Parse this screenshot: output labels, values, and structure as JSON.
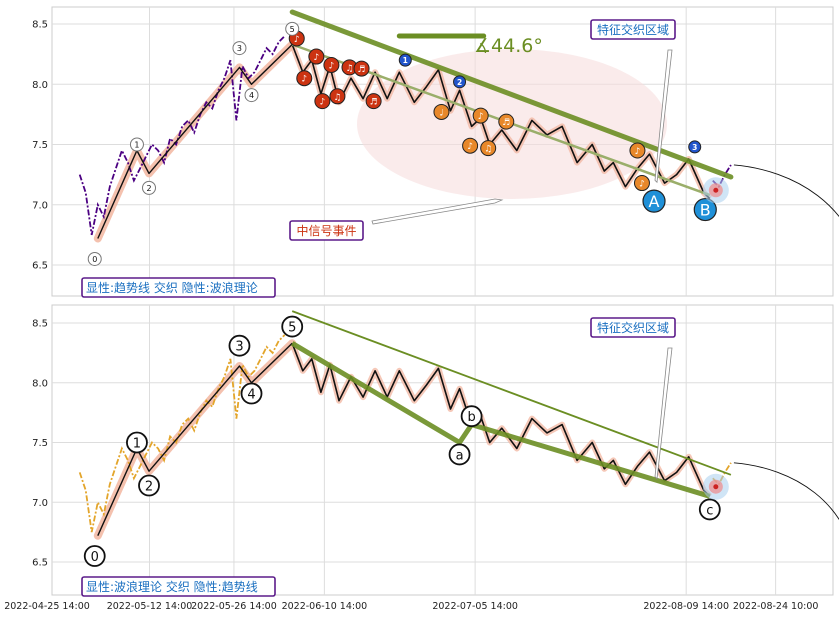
{
  "chart_data": [
    {
      "type": "line",
      "panel": "top",
      "title": "",
      "xlabel": "",
      "ylabel": "",
      "ylim": [
        6.27,
        8.65
      ],
      "yticks": [
        6.5,
        7.0,
        7.5,
        8.0,
        8.5
      ],
      "ytick_labels": [
        "6.5",
        "7.0",
        "7.5",
        "8.0",
        "8.5"
      ],
      "grid": true,
      "legend_box": "显性:趋势线 交织 隐性:波浪理论",
      "angle_label": "∡44.6°",
      "signal_label": "中信号事件",
      "zone_label": "特征交织区域",
      "big_labels": [
        {
          "text": "A",
          "date": "2022-08-04 06:00",
          "y": 7.03
        },
        {
          "text": "B",
          "date": "2022-08-12 18:00",
          "y": 6.96
        }
      ],
      "series": [
        {
          "role": "price",
          "color": "#4b0082",
          "x": [
            "2022-05-01 00:00",
            "2022-05-02 00:00",
            "2022-05-03 00:00",
            "2022-05-04 00:00",
            "2022-05-05 00:00",
            "2022-05-06 00:00",
            "2022-05-07 00:00",
            "2022-05-08 00:00",
            "2022-05-09 00:00",
            "2022-05-10 00:00",
            "2022-05-11 00:00",
            "2022-05-12 00:00",
            "2022-05-13 00:00",
            "2022-05-14 00:00",
            "2022-05-15 00:00",
            "2022-05-16 00:00",
            "2022-05-17 00:00",
            "2022-05-18 00:00",
            "2022-05-19 00:00",
            "2022-05-20 00:00",
            "2022-05-21 00:00",
            "2022-05-22 00:00",
            "2022-05-23 00:00",
            "2022-05-24 00:00",
            "2022-05-25 00:00",
            "2022-05-26 00:00",
            "2022-05-27 00:00",
            "2022-05-28 00:00",
            "2022-05-29 00:00",
            "2022-05-30 00:00",
            "2022-05-31 00:00",
            "2022-06-01 00:00",
            "2022-06-02 00:00",
            "2022-06-03 00:00",
            "2022-06-04 00:00"
          ],
          "y": [
            7.25,
            7.1,
            6.75,
            7.0,
            6.9,
            7.15,
            7.3,
            7.45,
            7.35,
            7.2,
            7.3,
            7.4,
            7.5,
            7.45,
            7.35,
            7.55,
            7.5,
            7.65,
            7.7,
            7.6,
            7.75,
            7.85,
            7.8,
            7.95,
            8.05,
            8.2,
            7.7,
            8.15,
            8.05,
            8.1,
            8.2,
            8.3,
            8.25,
            8.35,
            8.4
          ]
        },
        {
          "role": "price-after",
          "color": "#4b0082",
          "x": [
            "2022-08-14 00:00",
            "2022-08-15 00:00",
            "2022-08-16 00:00",
            "2022-08-17 00:00"
          ],
          "y": [
            7.2,
            7.15,
            7.25,
            7.33
          ]
        },
        {
          "role": "wave",
          "color": "#000000",
          "x": [
            "2022-06-05 06:00",
            "2022-06-07 00:00",
            "2022-06-08 12:00",
            "2022-06-10 00:00",
            "2022-06-11 12:00",
            "2022-06-13 00:00",
            "2022-06-15 00:00",
            "2022-06-17 00:00",
            "2022-06-19 00:00",
            "2022-06-21 00:00",
            "2022-06-23 00:00",
            "2022-06-25 12:00",
            "2022-06-27 12:00",
            "2022-06-29 12:00",
            "2022-07-01 12:00",
            "2022-07-03 00:00",
            "2022-07-05 00:00",
            "2022-07-06 12:00",
            "2022-07-08 00:00",
            "2022-07-10 00:00",
            "2022-07-12 12:00",
            "2022-07-15 00:00",
            "2022-07-17 12:00",
            "2022-07-20 00:00",
            "2022-07-22 12:00",
            "2022-07-25 00:00",
            "2022-07-27 00:00",
            "2022-07-28 12:00",
            "2022-07-30 12:00",
            "2022-08-01 12:00",
            "2022-08-03 12:00",
            "2022-08-06 00:00",
            "2022-08-08 00:00",
            "2022-08-10 00:00",
            "2022-08-12 12:00",
            "2022-08-13 12:00"
          ],
          "y": [
            8.33,
            8.1,
            8.2,
            7.92,
            8.15,
            7.85,
            8.05,
            7.88,
            8.1,
            7.88,
            8.1,
            7.85,
            7.98,
            8.12,
            7.78,
            7.95,
            7.65,
            7.72,
            7.5,
            7.62,
            7.45,
            7.7,
            7.58,
            7.65,
            7.35,
            7.5,
            7.28,
            7.35,
            7.15,
            7.3,
            7.42,
            7.18,
            7.25,
            7.38,
            7.1,
            7.05
          ]
        },
        {
          "role": "wave-impulse",
          "color": "#000000",
          "x": [
            "2022-05-04 00:00",
            "2022-05-10 12:00",
            "2022-05-12 12:00",
            "2022-05-27 12:00",
            "2022-05-29 12:00",
            "2022-06-05 06:00"
          ],
          "y": [
            6.72,
            7.45,
            7.26,
            8.14,
            8.0,
            8.33
          ]
        },
        {
          "role": "trendline",
          "color": "#6b8e23",
          "x": [
            "2022-06-05 06:00",
            "2022-08-17 00:00"
          ],
          "y": [
            8.6,
            7.23
          ]
        },
        {
          "role": "trendline-thin",
          "color": "#6b8e23",
          "x": [
            "2022-06-05 06:00",
            "2022-08-13 12:00"
          ],
          "y": [
            8.33,
            7.08
          ]
        },
        {
          "role": "angle-bar",
          "color": "#6b8e23",
          "x": [
            "2022-06-23 00:00",
            "2022-07-07 00:00"
          ],
          "y": [
            8.4,
            8.4
          ]
        }
      ],
      "wave_markers": [
        {
          "label": "0",
          "date": "2022-05-03 12:00",
          "y": 6.55
        },
        {
          "label": "1",
          "date": "2022-05-10 12:00",
          "y": 7.5
        },
        {
          "label": "2",
          "date": "2022-05-12 12:00",
          "y": 7.14
        },
        {
          "label": "3",
          "date": "2022-05-27 12:00",
          "y": 8.3
        },
        {
          "label": "4",
          "date": "2022-05-29 12:00",
          "y": 7.91
        },
        {
          "label": "5",
          "date": "2022-06-05 06:00",
          "y": 8.46
        }
      ],
      "event_markers": [
        {
          "date": "2022-06-06 00:00",
          "y": 8.38,
          "color": "#cc3311",
          "label": "♪"
        },
        {
          "date": "2022-06-07 06:00",
          "y": 8.05,
          "color": "#cc3311",
          "label": "♪"
        },
        {
          "date": "2022-06-09 06:00",
          "y": 8.23,
          "color": "#cc3311",
          "label": "♪"
        },
        {
          "date": "2022-06-10 06:00",
          "y": 7.86,
          "color": "#cc3311",
          "label": "♪"
        },
        {
          "date": "2022-06-11 18:00",
          "y": 8.16,
          "color": "#cc3311",
          "label": "♪"
        },
        {
          "date": "2022-06-12 18:00",
          "y": 7.9,
          "color": "#cc3311",
          "label": "♫"
        },
        {
          "date": "2022-06-14 18:00",
          "y": 8.14,
          "color": "#cc3311",
          "label": "♫"
        },
        {
          "date": "2022-06-16 18:00",
          "y": 8.13,
          "color": "#cc3311",
          "label": "♬"
        },
        {
          "date": "2022-06-18 18:00",
          "y": 7.86,
          "color": "#cc3311",
          "label": "♬"
        },
        {
          "date": "2022-06-30 00:00",
          "y": 7.77,
          "color": "#e8882a",
          "label": "♩"
        },
        {
          "date": "2022-07-04 18:00",
          "y": 7.49,
          "color": "#e8882a",
          "label": "♪"
        },
        {
          "date": "2022-07-06 12:00",
          "y": 7.74,
          "color": "#e8882a",
          "label": "♪"
        },
        {
          "date": "2022-07-07 18:00",
          "y": 7.47,
          "color": "#e8882a",
          "label": "♫"
        },
        {
          "date": "2022-07-10 18:00",
          "y": 7.69,
          "color": "#e8882a",
          "label": "♬"
        },
        {
          "date": "2022-08-01 12:00",
          "y": 7.45,
          "color": "#e8882a",
          "label": "♪"
        },
        {
          "date": "2022-08-02 06:00",
          "y": 7.18,
          "color": "#e8882a",
          "label": "♪"
        },
        {
          "date": "2022-06-24 00:00",
          "y": 8.2,
          "color": "#2255cc",
          "label": "1"
        },
        {
          "date": "2022-07-03 00:00",
          "y": 8.02,
          "color": "#2255cc",
          "label": "2"
        },
        {
          "date": "2022-08-11 00:00",
          "y": 7.48,
          "color": "#2255cc",
          "label": "3"
        }
      ]
    },
    {
      "type": "line",
      "panel": "bottom",
      "title": "",
      "xlabel": "",
      "ylabel": "",
      "ylim": [
        6.27,
        8.65
      ],
      "yticks": [
        6.5,
        7.0,
        7.5,
        8.0,
        8.5
      ],
      "ytick_labels": [
        "6.5",
        "7.0",
        "7.5",
        "8.0",
        "8.5"
      ],
      "xticks": [
        "2022-04-25 14:00",
        "2022-05-12 14:00",
        "2022-05-26 14:00",
        "2022-06-10 14:00",
        "2022-07-05 14:00",
        "2022-08-09 14:00",
        "2022-08-24 10:00"
      ],
      "xtick_labels": [
        "2022-04-25 14:00",
        "2022-05-12 14:00",
        "2022-05-26 14:00",
        "2022-06-10 14:00",
        "2022-07-05 14:00",
        "2022-08-09 14:00",
        "2022-08-24 10:00"
      ],
      "grid": true,
      "legend_box": "显性:波浪理论 交织 隐性:趋势线",
      "zone_label": "特征交织区域",
      "series": [
        {
          "role": "price",
          "color": "#e3a52b",
          "x": [
            "2022-05-01 00:00",
            "2022-05-02 00:00",
            "2022-05-03 00:00",
            "2022-05-04 00:00",
            "2022-05-05 00:00",
            "2022-05-06 00:00",
            "2022-05-07 00:00",
            "2022-05-08 00:00",
            "2022-05-09 00:00",
            "2022-05-10 00:00",
            "2022-05-11 00:00",
            "2022-05-12 00:00",
            "2022-05-13 00:00",
            "2022-05-14 00:00",
            "2022-05-15 00:00",
            "2022-05-16 00:00",
            "2022-05-17 00:00",
            "2022-05-18 00:00",
            "2022-05-19 00:00",
            "2022-05-20 00:00",
            "2022-05-21 00:00",
            "2022-05-22 00:00",
            "2022-05-23 00:00",
            "2022-05-24 00:00",
            "2022-05-25 00:00",
            "2022-05-26 00:00",
            "2022-05-27 00:00",
            "2022-05-28 00:00",
            "2022-05-29 00:00",
            "2022-05-30 00:00",
            "2022-05-31 00:00",
            "2022-06-01 00:00",
            "2022-06-02 00:00",
            "2022-06-03 00:00",
            "2022-06-04 00:00"
          ],
          "y": [
            7.25,
            7.1,
            6.75,
            7.0,
            6.9,
            7.15,
            7.3,
            7.45,
            7.35,
            7.2,
            7.3,
            7.4,
            7.5,
            7.45,
            7.35,
            7.55,
            7.5,
            7.65,
            7.7,
            7.6,
            7.75,
            7.85,
            7.8,
            7.95,
            8.05,
            8.2,
            7.7,
            8.15,
            8.05,
            8.1,
            8.2,
            8.3,
            8.25,
            8.35,
            8.4
          ]
        },
        {
          "role": "price-after",
          "color": "#e3a52b",
          "x": [
            "2022-08-14 00:00",
            "2022-08-15 00:00",
            "2022-08-16 00:00",
            "2022-08-17 00:00"
          ],
          "y": [
            7.2,
            7.15,
            7.25,
            7.33
          ]
        },
        {
          "role": "wave",
          "color": "#000000",
          "x": [
            "2022-06-05 06:00",
            "2022-06-07 00:00",
            "2022-06-08 12:00",
            "2022-06-10 00:00",
            "2022-06-11 12:00",
            "2022-06-13 00:00",
            "2022-06-15 00:00",
            "2022-06-17 00:00",
            "2022-06-19 00:00",
            "2022-06-21 00:00",
            "2022-06-23 00:00",
            "2022-06-25 12:00",
            "2022-06-27 12:00",
            "2022-06-29 12:00",
            "2022-07-01 12:00",
            "2022-07-03 00:00",
            "2022-07-05 00:00",
            "2022-07-06 12:00",
            "2022-07-08 00:00",
            "2022-07-10 00:00",
            "2022-07-12 12:00",
            "2022-07-15 00:00",
            "2022-07-17 12:00",
            "2022-07-20 00:00",
            "2022-07-22 12:00",
            "2022-07-25 00:00",
            "2022-07-27 00:00",
            "2022-07-28 12:00",
            "2022-07-30 12:00",
            "2022-08-01 12:00",
            "2022-08-03 12:00",
            "2022-08-06 00:00",
            "2022-08-08 00:00",
            "2022-08-10 00:00",
            "2022-08-12 12:00",
            "2022-08-13 12:00"
          ],
          "y": [
            8.33,
            8.1,
            8.2,
            7.92,
            8.15,
            7.85,
            8.05,
            7.88,
            8.1,
            7.88,
            8.1,
            7.85,
            7.98,
            8.12,
            7.78,
            7.95,
            7.65,
            7.72,
            7.5,
            7.62,
            7.45,
            7.7,
            7.58,
            7.65,
            7.35,
            7.5,
            7.28,
            7.35,
            7.15,
            7.3,
            7.42,
            7.18,
            7.25,
            7.38,
            7.1,
            7.05
          ]
        },
        {
          "role": "wave-impulse",
          "color": "#000000",
          "x": [
            "2022-05-04 00:00",
            "2022-05-10 12:00",
            "2022-05-12 12:00",
            "2022-05-27 12:00",
            "2022-05-29 12:00",
            "2022-06-05 06:00"
          ],
          "y": [
            6.72,
            7.45,
            7.26,
            8.14,
            8.0,
            8.33
          ]
        },
        {
          "role": "wave-abc",
          "color": "#6b8e23",
          "x": [
            "2022-06-05 06:00",
            "2022-07-03 00:00",
            "2022-07-05 00:00",
            "2022-08-13 12:00"
          ],
          "y": [
            8.33,
            7.5,
            7.65,
            7.05
          ]
        },
        {
          "role": "trendline-thin",
          "color": "#6b8e23",
          "x": [
            "2022-06-05 06:00",
            "2022-08-17 00:00"
          ],
          "y": [
            8.6,
            7.23
          ]
        }
      ],
      "wave_markers": [
        {
          "label": "0",
          "date": "2022-05-03 12:00",
          "y": 6.55
        },
        {
          "label": "1",
          "date": "2022-05-10 12:00",
          "y": 7.5
        },
        {
          "label": "2",
          "date": "2022-05-12 12:00",
          "y": 7.14
        },
        {
          "label": "3",
          "date": "2022-05-27 12:00",
          "y": 8.31
        },
        {
          "label": "4",
          "date": "2022-05-29 12:00",
          "y": 7.91
        },
        {
          "label": "5",
          "date": "2022-06-05 06:00",
          "y": 8.47
        },
        {
          "label": "a",
          "date": "2022-07-03 00:00",
          "y": 7.4
        },
        {
          "label": "b",
          "date": "2022-07-05 00:00",
          "y": 7.72
        },
        {
          "label": "c",
          "date": "2022-08-13 12:00",
          "y": 6.94
        }
      ]
    }
  ]
}
